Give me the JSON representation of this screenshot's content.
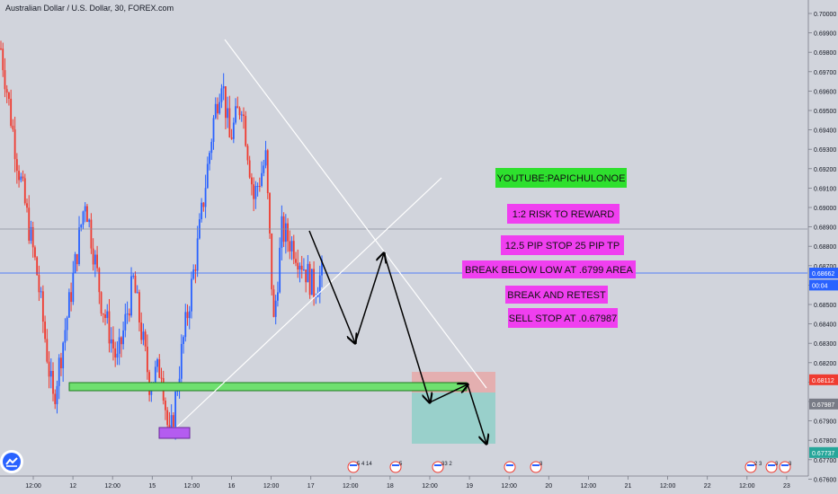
{
  "title": "Australian Dollar / U.S. Dollar, 30, FOREX.com",
  "colors": {
    "background": "#d1d4dc",
    "up": "#2962ff",
    "down": "#ef3b30",
    "trend_line": "#ffffff",
    "support_zone": "#6fe06f",
    "support_zone_border": "#1f7a1f",
    "low_marker": "#b45cf0",
    "note_magenta": "#f03ff0",
    "note_green": "#2ee02e",
    "arrow": "#000000",
    "stop_zone": "#e8a8a8",
    "target_zone": "#8fcfc8",
    "price_line_blue": "#2962ff",
    "price_line_gray": "#8a8f9e"
  },
  "chart_data": {
    "type": "candlestick",
    "symbol": "Australian Dollar / U.S. Dollar",
    "timeframe": "30",
    "source": "FOREX.com",
    "ylim": [
      0.6756,
      0.7006
    ],
    "y_ticks": [
      0.676,
      0.677,
      0.678,
      0.679,
      0.68,
      0.681,
      0.682,
      0.683,
      0.684,
      0.685,
      0.686,
      0.687,
      0.688,
      0.689,
      0.69,
      0.691,
      0.692,
      0.693,
      0.694,
      0.695,
      0.696,
      0.697,
      0.698,
      0.699,
      0.7
    ],
    "x_ticks": [
      "12:00",
      "12",
      "12:00",
      "15",
      "12:00",
      "16",
      "12:00",
      "17",
      "12:00",
      "18",
      "12:00",
      "19",
      "12:00",
      "20",
      "12:00",
      "21",
      "12:00",
      "22",
      "12:00",
      "23"
    ],
    "price_labels": [
      {
        "value": 0.68662,
        "label": "0.68662",
        "color": "#2962ff"
      },
      {
        "value": 0.686,
        "label": "00:04",
        "color": "#2962ff"
      },
      {
        "value": 0.68112,
        "label": "0.68112",
        "color": "#ef3b30"
      },
      {
        "value": 0.67987,
        "label": "0.67987",
        "color": "#787b86"
      },
      {
        "value": 0.67737,
        "label": "0.67737",
        "color": "#26a69a"
      }
    ],
    "horizontal_lines": [
      {
        "value": 0.68662,
        "color": "#2962ff"
      },
      {
        "value": 0.68889,
        "color": "#8a8f9e"
      }
    ],
    "path_waypoints": [
      {
        "t": 0,
        "price": 0.6982
      },
      {
        "t": 8,
        "price": 0.6925
      },
      {
        "t": 18,
        "price": 0.6866
      },
      {
        "t": 26,
        "price": 0.68
      },
      {
        "t": 34,
        "price": 0.685
      },
      {
        "t": 42,
        "price": 0.6905
      },
      {
        "t": 50,
        "price": 0.6852
      },
      {
        "t": 58,
        "price": 0.682
      },
      {
        "t": 66,
        "price": 0.6862
      },
      {
        "t": 74,
        "price": 0.681
      },
      {
        "t": 80,
        "price": 0.6818
      },
      {
        "t": 84,
        "price": 0.6778
      },
      {
        "t": 90,
        "price": 0.6825
      },
      {
        "t": 98,
        "price": 0.688
      },
      {
        "t": 106,
        "price": 0.6945
      },
      {
        "t": 110,
        "price": 0.6968
      },
      {
        "t": 114,
        "price": 0.6935
      },
      {
        "t": 120,
        "price": 0.6955
      },
      {
        "t": 126,
        "price": 0.6905
      },
      {
        "t": 132,
        "price": 0.6925
      },
      {
        "t": 136,
        "price": 0.684
      },
      {
        "t": 140,
        "price": 0.6888
      },
      {
        "t": 146,
        "price": 0.688
      },
      {
        "t": 150,
        "price": 0.6872
      },
      {
        "t": 156,
        "price": 0.6858
      },
      {
        "t": 160,
        "price": 0.6866
      }
    ],
    "annotations": [
      {
        "text": "YOUTUBE:PAPICHULONOE",
        "style": "green"
      },
      {
        "text": "1:2 RISK TO REWARD",
        "style": "magenta"
      },
      {
        "text": "12.5 PIP STOP 25 PIP TP",
        "style": "magenta"
      },
      {
        "text": "BREAK BELOW LOW AT .6799 AREA",
        "style": "magenta"
      },
      {
        "text": "BREAK AND RETEST",
        "style": "magenta"
      },
      {
        "text": "SELL STOP AT .0.67987",
        "style": "magenta"
      }
    ],
    "event_badges": [
      {
        "label": "5  4  14"
      },
      {
        "label": "5"
      },
      {
        "label": "33  2"
      },
      {
        "label": ""
      },
      {
        "label": "3"
      },
      {
        "label": "2 3"
      },
      {
        "label": "3"
      },
      {
        "label": "3"
      }
    ]
  }
}
